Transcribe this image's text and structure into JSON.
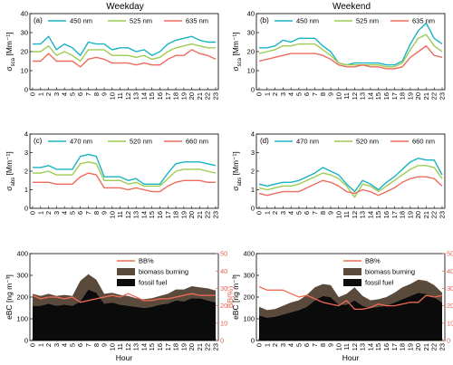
{
  "figure": {
    "col_titles": [
      "Weekday",
      "Weekend"
    ],
    "bottom_xlabel": "Hour"
  },
  "colors": {
    "c450": "#19b3c2",
    "c525": "#9dcc52",
    "c635": "#ef6b5e",
    "biomass": "#5a4a3c",
    "fossil": "#0b0b0b",
    "bbline": "#f26b56",
    "right_axis": "#e8604a"
  },
  "chart_data": [
    {
      "panel": "(a)",
      "type": "line",
      "group": "scattering",
      "ylabel_main": "σ",
      "ylabel_sub": "sca",
      "ylabel_unit": " [Mm⁻¹]",
      "ylim": [
        0,
        40
      ],
      "yticks": [
        0,
        10,
        20,
        30,
        40
      ],
      "x": [
        0,
        1,
        2,
        3,
        4,
        5,
        6,
        7,
        8,
        9,
        10,
        11,
        12,
        13,
        14,
        15,
        16,
        17,
        18,
        19,
        20,
        21,
        22,
        23
      ],
      "series": [
        {
          "name": "450 nm",
          "color_key": "c450",
          "values": [
            24,
            24,
            28,
            21,
            24,
            22,
            18,
            25,
            24,
            24,
            21,
            22,
            22,
            20,
            21,
            18,
            20,
            24,
            26,
            27,
            28,
            26,
            25,
            25
          ]
        },
        {
          "name": "525 nm",
          "color_key": "c525",
          "values": [
            20,
            20,
            23,
            18,
            20,
            18,
            15,
            21,
            21,
            21,
            18,
            18,
            18,
            17,
            18,
            16,
            17,
            20,
            22,
            23,
            24,
            23,
            22,
            22
          ]
        },
        {
          "name": "635 nm",
          "color_key": "c635",
          "values": [
            15,
            15,
            19,
            15,
            15,
            15,
            12,
            16,
            17,
            16,
            14,
            14,
            14,
            13,
            14,
            13,
            13,
            16,
            18,
            18,
            21,
            19,
            18,
            16
          ]
        }
      ]
    },
    {
      "panel": "(b)",
      "type": "line",
      "group": "scattering",
      "ylabel_main": "σ",
      "ylabel_sub": "sca",
      "ylabel_unit": " [Mm⁻¹]",
      "ylim": [
        0,
        40
      ],
      "yticks": [
        0,
        10,
        20,
        30,
        40
      ],
      "x": [
        0,
        1,
        2,
        3,
        4,
        5,
        6,
        7,
        8,
        9,
        10,
        11,
        12,
        13,
        14,
        15,
        16,
        17,
        18,
        19,
        20,
        21,
        22,
        23
      ],
      "series": [
        {
          "name": "450 nm",
          "color_key": "c450",
          "values": [
            22,
            22,
            23,
            26,
            25,
            27,
            27,
            27,
            23,
            20,
            14,
            13,
            14,
            14,
            14,
            14,
            13,
            13,
            15,
            24,
            31,
            35,
            27,
            24
          ]
        },
        {
          "name": "525 nm",
          "color_key": "c525",
          "values": [
            19,
            20,
            21,
            23,
            23,
            24,
            24,
            24,
            21,
            18,
            14,
            13,
            13,
            13,
            13,
            13,
            12,
            12,
            14,
            21,
            27,
            29,
            23,
            20
          ]
        },
        {
          "name": "635 nm",
          "color_key": "c635",
          "values": [
            15,
            16,
            17,
            18,
            19,
            19,
            19,
            19,
            18,
            16,
            13,
            12,
            12,
            13,
            12,
            12,
            11,
            11,
            12,
            17,
            20,
            23,
            18,
            17
          ]
        }
      ]
    },
    {
      "panel": "(c)",
      "type": "line",
      "group": "absorption",
      "ylabel_main": "σ",
      "ylabel_sub": "abs",
      "ylabel_unit": " [Mm⁻¹]",
      "ylim": [
        0,
        4
      ],
      "yticks": [
        0,
        1,
        2,
        3,
        4
      ],
      "x": [
        0,
        1,
        2,
        3,
        4,
        5,
        6,
        7,
        8,
        9,
        10,
        11,
        12,
        13,
        14,
        15,
        16,
        17,
        18,
        19,
        20,
        21,
        22,
        23
      ],
      "series": [
        {
          "name": "470 nm",
          "color_key": "c450",
          "values": [
            2.2,
            2.2,
            2.3,
            2.1,
            2.1,
            2.1,
            2.8,
            2.9,
            2.8,
            1.7,
            1.7,
            1.7,
            1.5,
            1.6,
            1.3,
            1.3,
            1.3,
            1.9,
            2.4,
            2.5,
            2.5,
            2.5,
            2.4,
            2.3
          ]
        },
        {
          "name": "520 nm",
          "color_key": "c525",
          "values": [
            1.9,
            1.9,
            2.0,
            1.8,
            1.8,
            1.8,
            2.4,
            2.5,
            2.4,
            1.5,
            1.5,
            1.5,
            1.3,
            1.4,
            1.2,
            1.2,
            1.2,
            1.6,
            2.0,
            2.1,
            2.1,
            2.1,
            2.0,
            1.9
          ]
        },
        {
          "name": "660 nm",
          "color_key": "c635",
          "values": [
            1.4,
            1.4,
            1.4,
            1.3,
            1.3,
            1.3,
            1.7,
            1.9,
            1.8,
            1.1,
            1.1,
            1.1,
            1.0,
            1.1,
            1.0,
            0.9,
            0.9,
            1.2,
            1.4,
            1.5,
            1.5,
            1.5,
            1.4,
            1.4
          ]
        }
      ]
    },
    {
      "panel": "(d)",
      "type": "line",
      "group": "absorption",
      "ylabel_main": "σ",
      "ylabel_sub": "abs",
      "ylabel_unit": " [Mm⁻¹]",
      "ylim": [
        0,
        4
      ],
      "yticks": [
        0,
        1,
        2,
        3,
        4
      ],
      "x": [
        0,
        1,
        2,
        3,
        4,
        5,
        6,
        7,
        8,
        9,
        10,
        11,
        12,
        13,
        14,
        15,
        16,
        17,
        18,
        19,
        20,
        21,
        22,
        23
      ],
      "series": [
        {
          "name": "470 nm",
          "color_key": "c450",
          "values": [
            1.3,
            1.2,
            1.3,
            1.4,
            1.4,
            1.5,
            1.7,
            1.9,
            2.2,
            2.0,
            1.8,
            1.3,
            0.9,
            1.5,
            1.3,
            1.0,
            1.4,
            1.7,
            2.1,
            2.5,
            2.7,
            2.6,
            2.6,
            1.8
          ]
        },
        {
          "name": "520 nm",
          "color_key": "c525",
          "values": [
            1.1,
            1.0,
            1.1,
            1.2,
            1.2,
            1.3,
            1.5,
            1.7,
            1.9,
            1.8,
            1.6,
            1.2,
            0.6,
            1.3,
            1.2,
            0.9,
            1.2,
            1.5,
            1.8,
            2.1,
            2.3,
            2.3,
            2.2,
            1.6
          ]
        },
        {
          "name": "660 nm",
          "color_key": "c635",
          "values": [
            0.8,
            0.7,
            0.8,
            0.9,
            0.9,
            0.9,
            1.1,
            1.3,
            1.5,
            1.4,
            1.2,
            0.9,
            0.8,
            1.0,
            0.9,
            0.7,
            0.9,
            1.1,
            1.4,
            1.6,
            1.7,
            1.7,
            1.6,
            1.2
          ]
        }
      ]
    },
    {
      "panel": "(e)",
      "type": "area",
      "group": "ebc",
      "ylabel": "eBC [ng m⁻³]",
      "ylim": [
        0,
        400
      ],
      "yticks": [
        0,
        100,
        200,
        300,
        400
      ],
      "y2label": "BB(%)",
      "y2lim": [
        0,
        50
      ],
      "y2ticks": [
        0,
        10,
        20,
        30,
        40,
        50
      ],
      "xlabel": "Hour",
      "x": [
        0,
        1,
        2,
        3,
        4,
        5,
        6,
        7,
        8,
        9,
        10,
        11,
        12,
        13,
        14,
        15,
        16,
        17,
        18,
        19,
        20,
        21,
        22,
        23
      ],
      "series": [
        {
          "name": "fossil fuel",
          "color_key": "fossil",
          "values": [
            160,
            160,
            170,
            160,
            165,
            160,
            180,
            235,
            220,
            170,
            175,
            165,
            160,
            155,
            150,
            155,
            165,
            170,
            185,
            180,
            195,
            195,
            185,
            175
          ]
        },
        {
          "name": "biomass burning",
          "color_key": "biomass",
          "values": [
            55,
            45,
            45,
            45,
            45,
            45,
            95,
            70,
            60,
            45,
            45,
            45,
            45,
            40,
            40,
            40,
            40,
            45,
            50,
            55,
            55,
            50,
            55,
            55
          ]
        },
        {
          "name": "BB%",
          "color_key": "bbline",
          "axis": "right",
          "values": [
            26,
            24,
            25,
            25,
            24,
            25,
            22,
            23,
            24,
            25,
            26,
            25,
            27,
            25,
            23,
            23,
            24,
            24,
            25,
            26,
            27,
            26,
            26,
            26
          ]
        }
      ]
    },
    {
      "panel": "(f)",
      "type": "area",
      "group": "ebc",
      "ylabel": "eBC [ng m⁻³]",
      "ylim": [
        0,
        400
      ],
      "yticks": [
        0,
        100,
        200,
        300,
        400
      ],
      "y2label": "BB(%)",
      "y2lim": [
        0,
        50
      ],
      "y2ticks": [
        0,
        10,
        20,
        30,
        40,
        50
      ],
      "xlabel": "Hour",
      "x": [
        0,
        1,
        2,
        3,
        4,
        5,
        6,
        7,
        8,
        9,
        10,
        11,
        12,
        13,
        14,
        15,
        16,
        17,
        18,
        19,
        20,
        21,
        22,
        23
      ],
      "series": [
        {
          "name": "fossil fuel",
          "color_key": "fossil",
          "values": [
            115,
            105,
            110,
            120,
            130,
            140,
            155,
            185,
            205,
            200,
            165,
            165,
            185,
            160,
            150,
            155,
            160,
            175,
            190,
            205,
            220,
            215,
            200,
            175
          ]
        },
        {
          "name": "biomass burning",
          "color_key": "biomass",
          "values": [
            40,
            35,
            35,
            40,
            45,
            45,
            55,
            60,
            55,
            55,
            35,
            50,
            60,
            45,
            35,
            35,
            40,
            45,
            55,
            55,
            60,
            60,
            55,
            45
          ]
        },
        {
          "name": "BB%",
          "color_key": "bbline",
          "axis": "right",
          "values": [
            31,
            29,
            29,
            29,
            27,
            25,
            26,
            24,
            22,
            21,
            20,
            23,
            18,
            18,
            19,
            21,
            20,
            20,
            21,
            22,
            22,
            26,
            25,
            26
          ]
        }
      ]
    }
  ]
}
